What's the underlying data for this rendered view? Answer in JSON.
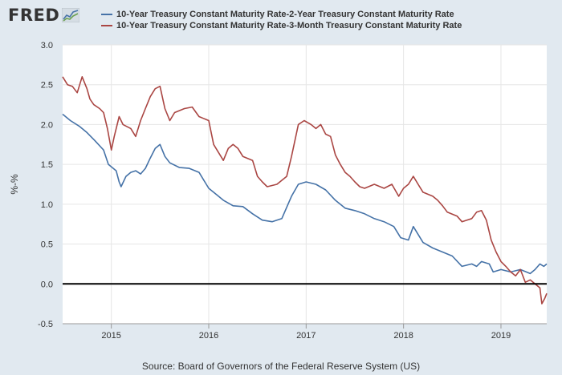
{
  "header": {
    "logo_text": "FRED",
    "logo_icon": "fred-graph-icon"
  },
  "legend": [
    {
      "label": "10-Year Treasury Constant Maturity Rate-2-Year Treasury Constant Maturity Rate",
      "color": "#4572a7"
    },
    {
      "label": "10-Year Treasury Constant Maturity Rate-3-Month Treasury Constant Maturity Rate",
      "color": "#aa4643"
    }
  ],
  "source": "Source: Board of Governors of the Federal Reserve System (US)",
  "chart_data": {
    "type": "line",
    "title": "",
    "xlabel": "",
    "ylabel": "%-%",
    "xlim": [
      2014.5,
      2019.47
    ],
    "ylim": [
      -0.5,
      3.0
    ],
    "grid": true,
    "legend_position": "top",
    "x_ticks": [
      {
        "value": 2015,
        "label": "2015"
      },
      {
        "value": 2016,
        "label": "2016"
      },
      {
        "value": 2017,
        "label": "2017"
      },
      {
        "value": 2018,
        "label": "2018"
      },
      {
        "value": 2019,
        "label": "2019"
      }
    ],
    "y_ticks": [
      {
        "value": -0.5,
        "label": "-0.5"
      },
      {
        "value": 0.0,
        "label": "0.0"
      },
      {
        "value": 0.5,
        "label": "0.5"
      },
      {
        "value": 1.0,
        "label": "1.0"
      },
      {
        "value": 1.5,
        "label": "1.5"
      },
      {
        "value": 2.0,
        "label": "2.0"
      },
      {
        "value": 2.5,
        "label": "2.5"
      },
      {
        "value": 3.0,
        "label": "3.0"
      }
    ],
    "zero_line": 0.0,
    "series": [
      {
        "name": "10-Year Treasury Constant Maturity Rate-2-Year Treasury Constant Maturity Rate",
        "color": "#4572a7",
        "points": [
          [
            2014.5,
            2.13
          ],
          [
            2014.58,
            2.05
          ],
          [
            2014.67,
            1.98
          ],
          [
            2014.75,
            1.9
          ],
          [
            2014.83,
            1.8
          ],
          [
            2014.92,
            1.68
          ],
          [
            2014.97,
            1.5
          ],
          [
            2015.05,
            1.42
          ],
          [
            2015.08,
            1.28
          ],
          [
            2015.1,
            1.22
          ],
          [
            2015.15,
            1.35
          ],
          [
            2015.2,
            1.4
          ],
          [
            2015.25,
            1.42
          ],
          [
            2015.3,
            1.38
          ],
          [
            2015.35,
            1.45
          ],
          [
            2015.4,
            1.58
          ],
          [
            2015.45,
            1.7
          ],
          [
            2015.5,
            1.75
          ],
          [
            2015.55,
            1.6
          ],
          [
            2015.6,
            1.52
          ],
          [
            2015.7,
            1.46
          ],
          [
            2015.8,
            1.45
          ],
          [
            2015.9,
            1.4
          ],
          [
            2016.0,
            1.2
          ],
          [
            2016.08,
            1.12
          ],
          [
            2016.15,
            1.05
          ],
          [
            2016.25,
            0.98
          ],
          [
            2016.35,
            0.97
          ],
          [
            2016.45,
            0.88
          ],
          [
            2016.55,
            0.8
          ],
          [
            2016.65,
            0.78
          ],
          [
            2016.75,
            0.82
          ],
          [
            2016.85,
            1.1
          ],
          [
            2016.92,
            1.25
          ],
          [
            2017.0,
            1.28
          ],
          [
            2017.1,
            1.25
          ],
          [
            2017.2,
            1.18
          ],
          [
            2017.3,
            1.05
          ],
          [
            2017.4,
            0.95
          ],
          [
            2017.5,
            0.92
          ],
          [
            2017.6,
            0.88
          ],
          [
            2017.7,
            0.82
          ],
          [
            2017.8,
            0.78
          ],
          [
            2017.9,
            0.72
          ],
          [
            2017.97,
            0.58
          ],
          [
            2018.05,
            0.55
          ],
          [
            2018.1,
            0.72
          ],
          [
            2018.15,
            0.62
          ],
          [
            2018.2,
            0.52
          ],
          [
            2018.3,
            0.45
          ],
          [
            2018.4,
            0.4
          ],
          [
            2018.5,
            0.35
          ],
          [
            2018.6,
            0.22
          ],
          [
            2018.7,
            0.25
          ],
          [
            2018.75,
            0.22
          ],
          [
            2018.8,
            0.28
          ],
          [
            2018.88,
            0.25
          ],
          [
            2018.92,
            0.15
          ],
          [
            2019.0,
            0.18
          ],
          [
            2019.1,
            0.15
          ],
          [
            2019.2,
            0.18
          ],
          [
            2019.3,
            0.13
          ],
          [
            2019.35,
            0.18
          ],
          [
            2019.4,
            0.25
          ],
          [
            2019.44,
            0.22
          ],
          [
            2019.47,
            0.25
          ]
        ]
      },
      {
        "name": "10-Year Treasury Constant Maturity Rate-3-Month Treasury Constant Maturity Rate",
        "color": "#aa4643",
        "points": [
          [
            2014.5,
            2.6
          ],
          [
            2014.55,
            2.5
          ],
          [
            2014.6,
            2.48
          ],
          [
            2014.65,
            2.4
          ],
          [
            2014.7,
            2.6
          ],
          [
            2014.75,
            2.45
          ],
          [
            2014.78,
            2.32
          ],
          [
            2014.82,
            2.25
          ],
          [
            2014.88,
            2.2
          ],
          [
            2014.92,
            2.15
          ],
          [
            2014.96,
            1.95
          ],
          [
            2015.0,
            1.68
          ],
          [
            2015.03,
            1.85
          ],
          [
            2015.08,
            2.1
          ],
          [
            2015.12,
            2.0
          ],
          [
            2015.2,
            1.95
          ],
          [
            2015.25,
            1.85
          ],
          [
            2015.3,
            2.05
          ],
          [
            2015.35,
            2.2
          ],
          [
            2015.4,
            2.35
          ],
          [
            2015.45,
            2.45
          ],
          [
            2015.5,
            2.48
          ],
          [
            2015.55,
            2.2
          ],
          [
            2015.6,
            2.05
          ],
          [
            2015.65,
            2.15
          ],
          [
            2015.75,
            2.2
          ],
          [
            2015.83,
            2.22
          ],
          [
            2015.9,
            2.1
          ],
          [
            2016.0,
            2.05
          ],
          [
            2016.05,
            1.75
          ],
          [
            2016.1,
            1.65
          ],
          [
            2016.15,
            1.55
          ],
          [
            2016.2,
            1.7
          ],
          [
            2016.25,
            1.75
          ],
          [
            2016.3,
            1.7
          ],
          [
            2016.35,
            1.6
          ],
          [
            2016.45,
            1.55
          ],
          [
            2016.5,
            1.35
          ],
          [
            2016.55,
            1.28
          ],
          [
            2016.6,
            1.22
          ],
          [
            2016.7,
            1.25
          ],
          [
            2016.8,
            1.35
          ],
          [
            2016.85,
            1.6
          ],
          [
            2016.92,
            2.0
          ],
          [
            2016.98,
            2.05
          ],
          [
            2017.05,
            2.0
          ],
          [
            2017.1,
            1.95
          ],
          [
            2017.15,
            2.0
          ],
          [
            2017.2,
            1.88
          ],
          [
            2017.25,
            1.85
          ],
          [
            2017.3,
            1.62
          ],
          [
            2017.35,
            1.5
          ],
          [
            2017.4,
            1.4
          ],
          [
            2017.45,
            1.35
          ],
          [
            2017.5,
            1.28
          ],
          [
            2017.55,
            1.22
          ],
          [
            2017.6,
            1.2
          ],
          [
            2017.7,
            1.25
          ],
          [
            2017.8,
            1.2
          ],
          [
            2017.88,
            1.25
          ],
          [
            2017.95,
            1.1
          ],
          [
            2018.0,
            1.2
          ],
          [
            2018.05,
            1.25
          ],
          [
            2018.1,
            1.35
          ],
          [
            2018.15,
            1.25
          ],
          [
            2018.2,
            1.15
          ],
          [
            2018.3,
            1.1
          ],
          [
            2018.35,
            1.05
          ],
          [
            2018.4,
            0.98
          ],
          [
            2018.45,
            0.9
          ],
          [
            2018.55,
            0.85
          ],
          [
            2018.6,
            0.78
          ],
          [
            2018.65,
            0.8
          ],
          [
            2018.7,
            0.82
          ],
          [
            2018.75,
            0.9
          ],
          [
            2018.8,
            0.92
          ],
          [
            2018.85,
            0.8
          ],
          [
            2018.9,
            0.55
          ],
          [
            2018.95,
            0.4
          ],
          [
            2019.0,
            0.28
          ],
          [
            2019.05,
            0.22
          ],
          [
            2019.1,
            0.15
          ],
          [
            2019.15,
            0.1
          ],
          [
            2019.2,
            0.18
          ],
          [
            2019.25,
            0.02
          ],
          [
            2019.3,
            0.05
          ],
          [
            2019.35,
            0.0
          ],
          [
            2019.4,
            -0.05
          ],
          [
            2019.42,
            -0.25
          ],
          [
            2019.45,
            -0.18
          ],
          [
            2019.47,
            -0.12
          ]
        ]
      }
    ]
  }
}
